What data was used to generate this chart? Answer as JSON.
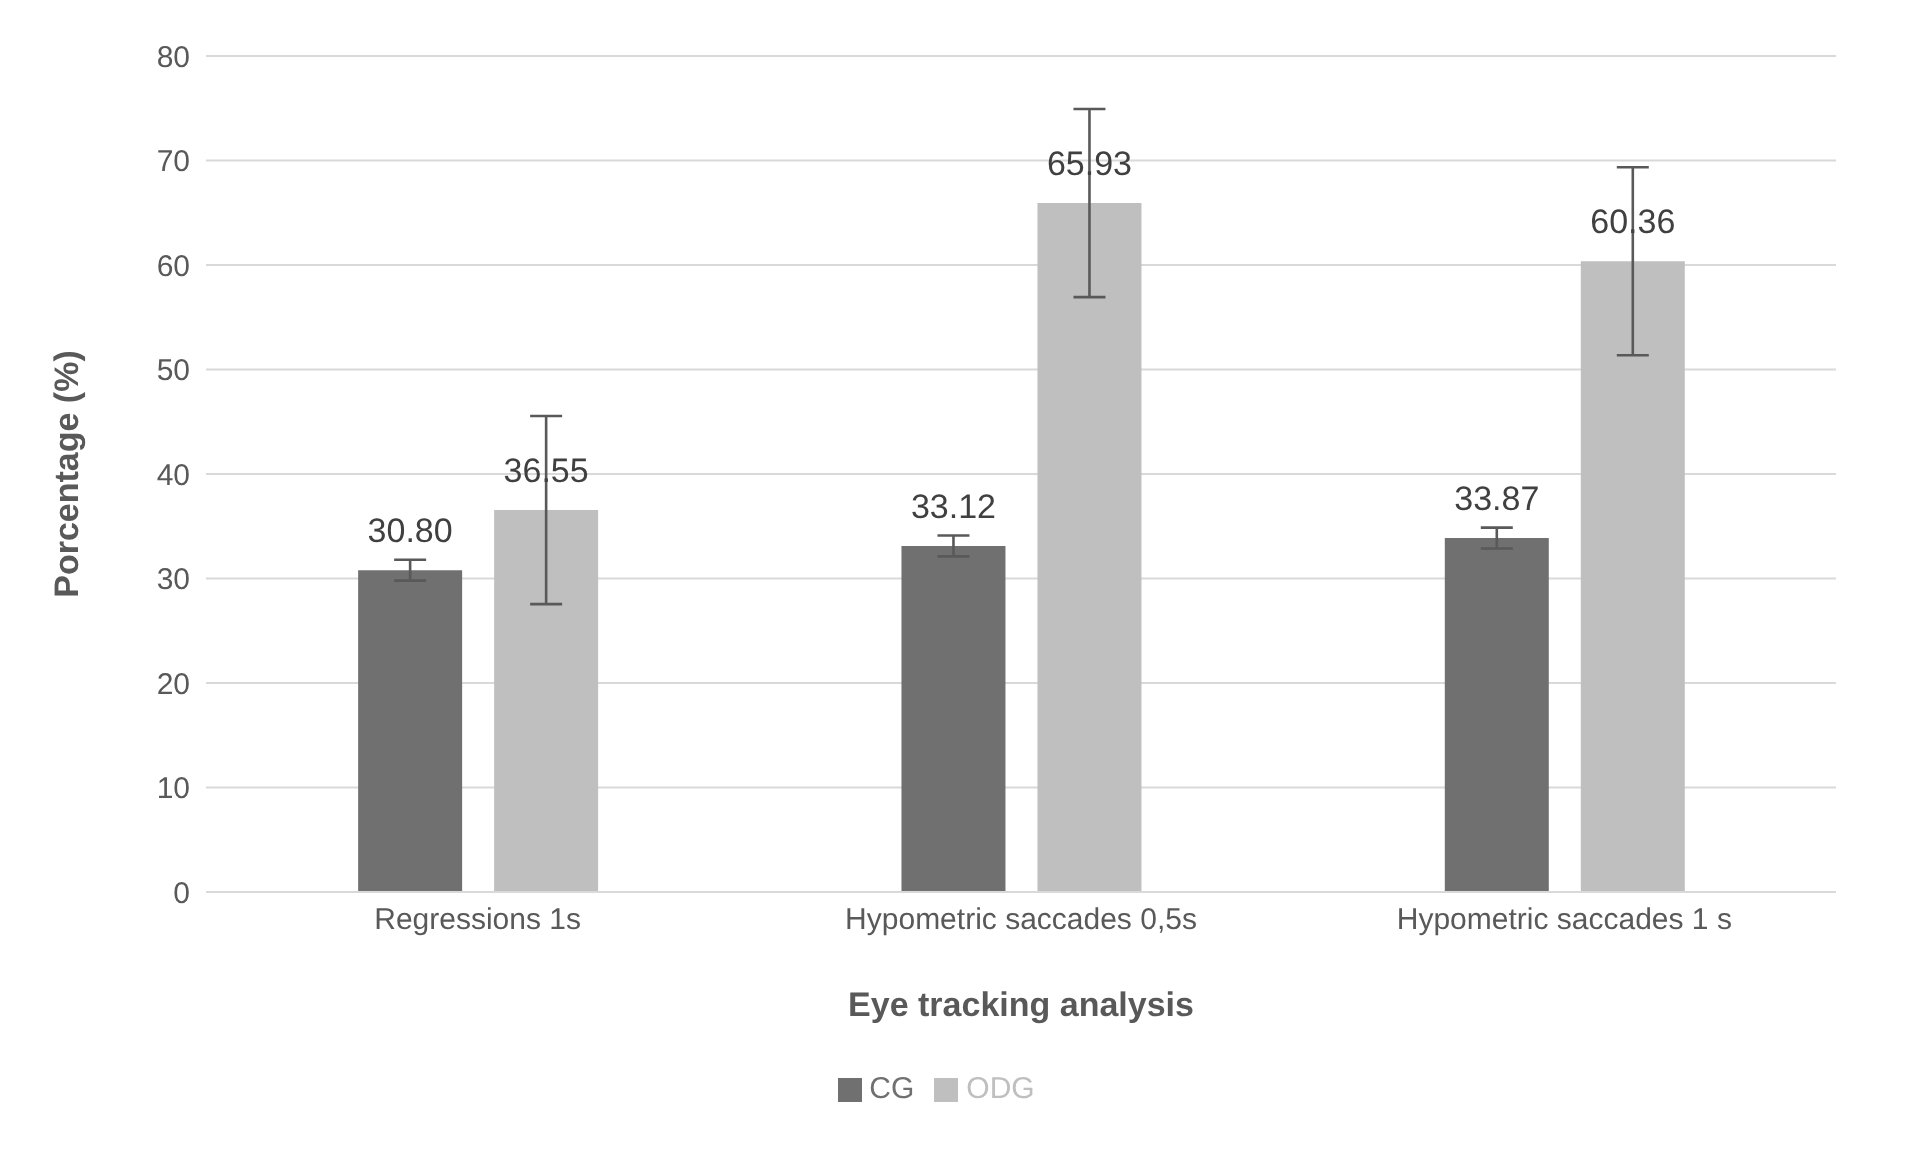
{
  "chart_data": {
    "type": "bar",
    "xlabel": "Eye tracking analysis",
    "ylabel": "Porcentage (%)",
    "categories": [
      "Regressions 1s",
      "Hypometric saccades 0,5s",
      "Hypometric saccades 1 s"
    ],
    "series": [
      {
        "name": "CG",
        "color": "#707070",
        "values": [
          30.8,
          33.12,
          33.87
        ],
        "value_labels": [
          "30.80",
          "33.12",
          "33.87"
        ],
        "errors": [
          1,
          1,
          1
        ]
      },
      {
        "name": "ODG",
        "color": "#bfbfbf",
        "values": [
          36.55,
          65.93,
          60.36
        ],
        "value_labels": [
          "36.55",
          "65.93",
          "60.36"
        ],
        "errors": [
          9,
          9,
          9
        ]
      }
    ],
    "ylim": [
      0,
      80
    ],
    "yticks": [
      0,
      10,
      20,
      30,
      40,
      50,
      60,
      70,
      80
    ],
    "grid": "y",
    "legend": "bottom"
  }
}
